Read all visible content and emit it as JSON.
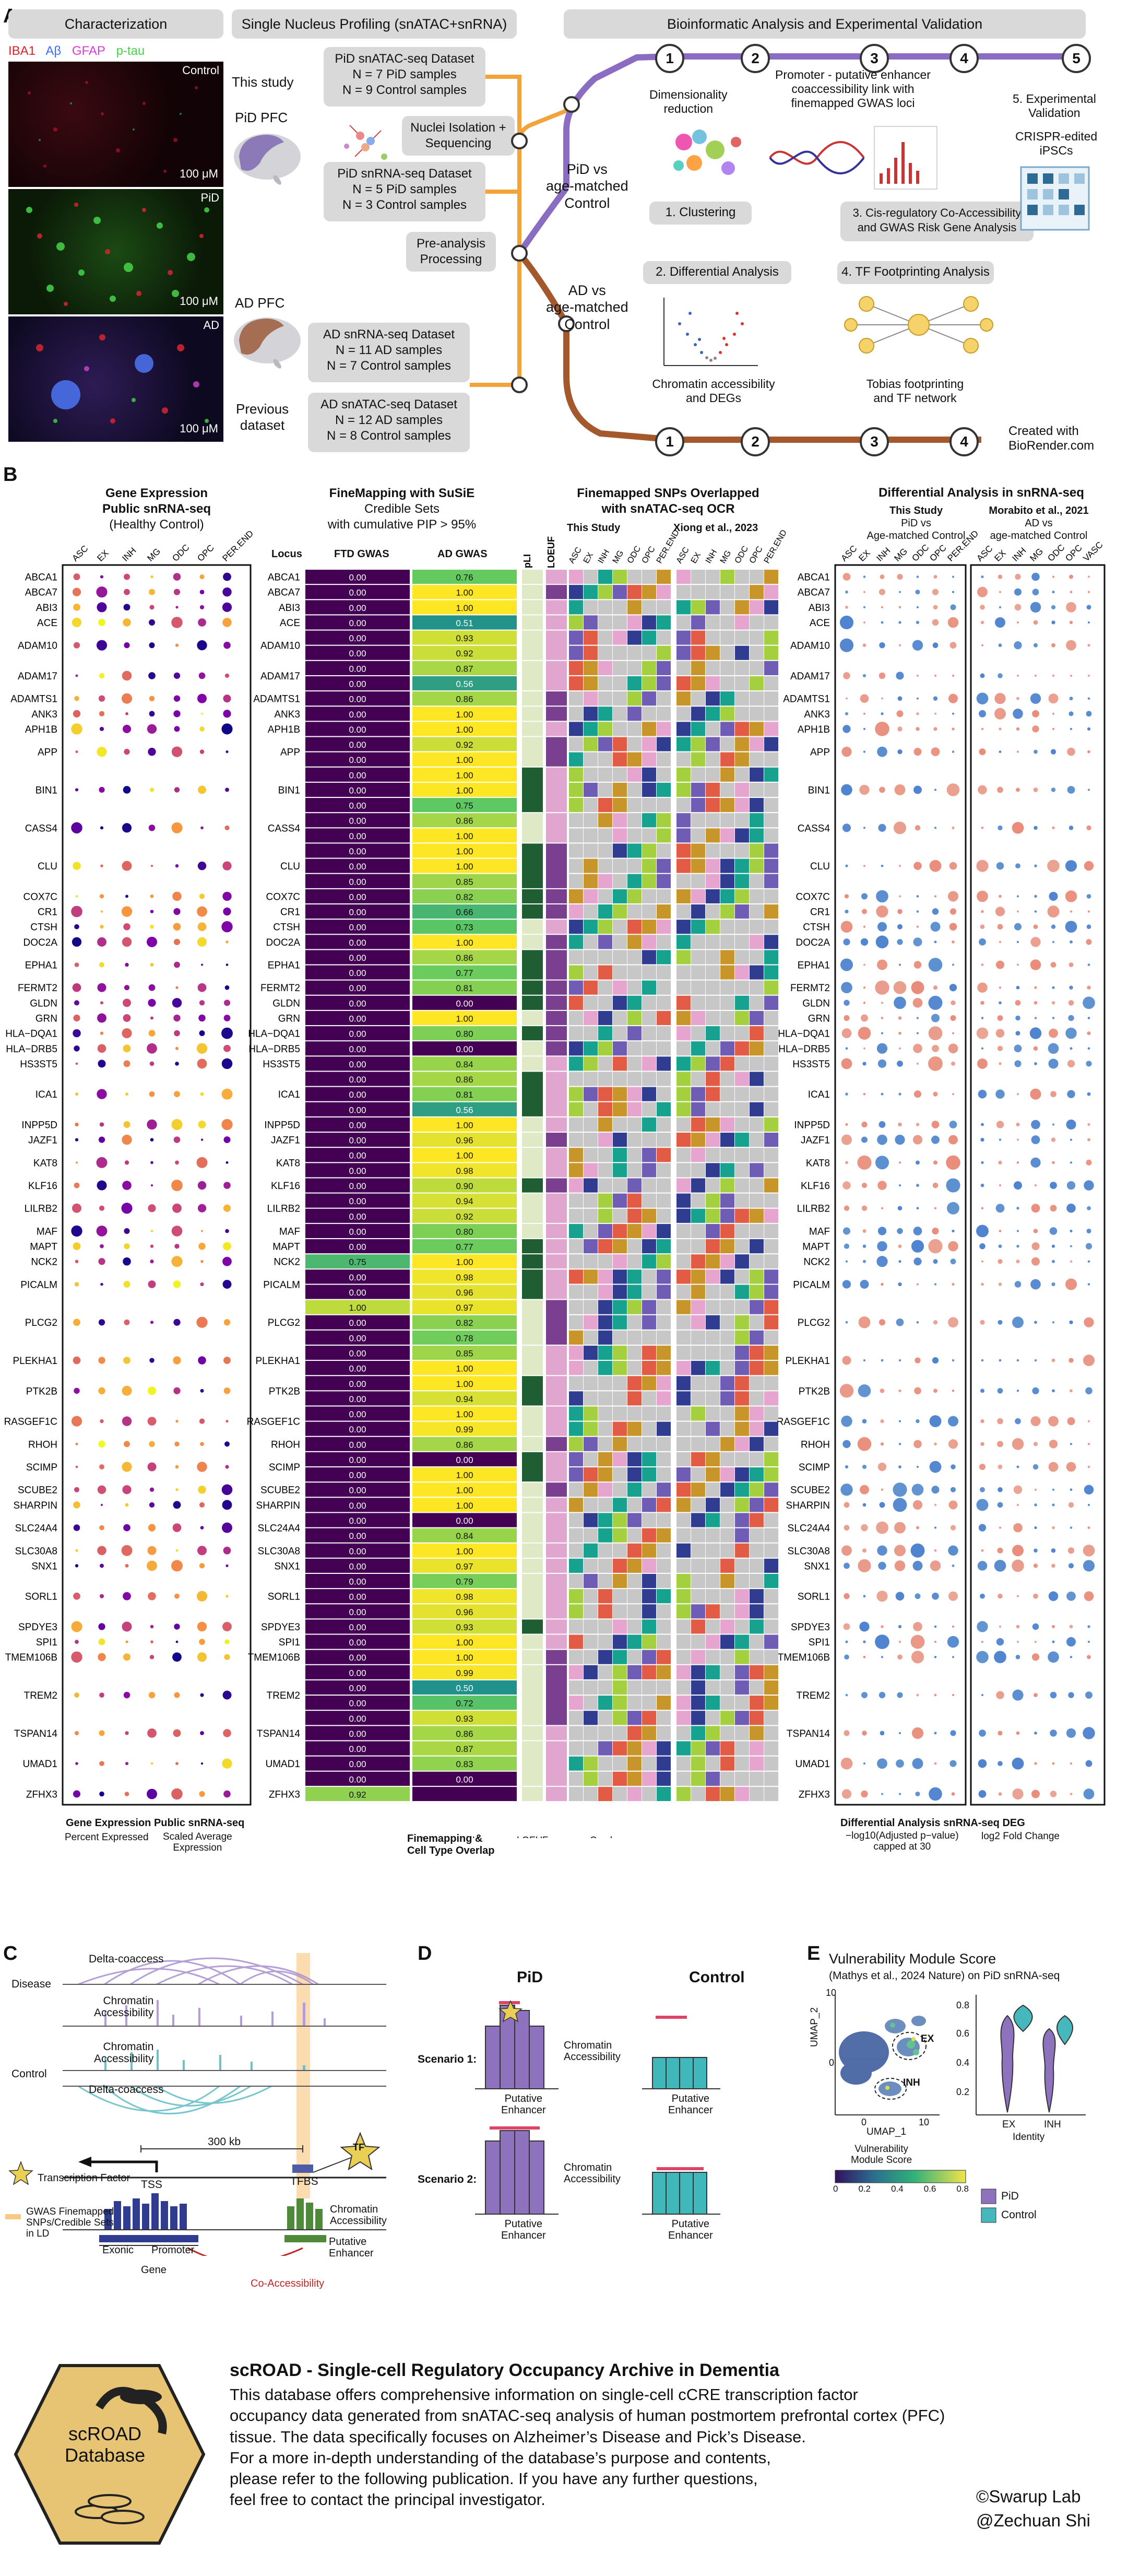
{
  "panelA": {
    "letter": "A",
    "characterization": "Characterization",
    "stains": [
      "IBA1",
      "Aβ",
      "GFAP",
      "p-tau"
    ],
    "stain_colors": [
      "#e01f2a",
      "#3c6bff",
      "#d43fd4",
      "#48d148"
    ],
    "micrographs": [
      {
        "label": "Control",
        "scale": "100 μM"
      },
      {
        "label": "PiD",
        "scale": "100 μM"
      },
      {
        "label": "AD",
        "scale": "100 μM"
      }
    ],
    "profiling_title": "Single Nucleus Profiling (snATAC+snRNA)",
    "this_study": "This study",
    "pid_pfc": "PiD PFC",
    "pid_atac": [
      "PiD snATAC-seq Dataset",
      "N = 7 PiD samples",
      "N = 9 Control samples"
    ],
    "nuclei": [
      "Nuclei Isolation +",
      "Sequencing"
    ],
    "pid_rna": [
      "PiD snRNA-seq Dataset",
      "N = 5 PiD samples",
      "N = 3 Control samples"
    ],
    "preanalysis": [
      "Pre-analysis",
      "Processing"
    ],
    "ad_pfc": "AD PFC",
    "ad_rna": [
      "AD snRNA-seq Dataset",
      "N = 11 AD samples",
      "N = 7 Control samples"
    ],
    "previous": [
      "Previous",
      "dataset"
    ],
    "ad_atac": [
      "AD snATAC-seq Dataset",
      "N = 12 AD samples",
      "N = 8 Control samples"
    ],
    "bioinf_title": "Bioinformatic Analysis and Experimental Validation",
    "pid_vs": [
      "PiD vs",
      "age-matched",
      "Control"
    ],
    "ad_vs": [
      "AD vs",
      "age-matched",
      "Control"
    ],
    "steps_top": [
      "1",
      "2",
      "3",
      "4",
      "5"
    ],
    "steps_bottom": [
      "1",
      "2",
      "3",
      "4"
    ],
    "dimred": [
      "Dimensionality",
      "reduction"
    ],
    "clustering": "1. Clustering",
    "promoter": [
      "Promoter - putative enhancer",
      "coaccessibility link with",
      "finemapped GWAS loci"
    ],
    "cis": [
      "3. Cis-regulatory Co-Accessibility",
      "and GWAS Risk Gene Analysis"
    ],
    "validation": [
      "5. Experimental",
      "Validation"
    ],
    "crispr": [
      "CRISPR-edited",
      "iPSCs"
    ],
    "diff": "2. Differential Analysis",
    "tf": "4. TF Footprinting Analysis",
    "chromatin": [
      "Chromatin accessibility",
      "and DEGs"
    ],
    "tobias": [
      "Tobias footprinting",
      "and TF network"
    ],
    "created": [
      "Created with",
      "BioRender.com"
    ]
  },
  "panelB": {
    "letter": "B",
    "genes": [
      "ABCA1",
      "ABCA7",
      "ABI3",
      "ACE",
      "ADAM10",
      "ADAM17",
      "ADAMTS1",
      "ANK3",
      "APH1B",
      "APP",
      "BIN1",
      "CASS4",
      "CLU",
      "COX7C",
      "CR1",
      "CTSH",
      "DOC2A",
      "EPHA1",
      "FERMT2",
      "GLDN",
      "GRN",
      "HLA−DQA1",
      "HLA−DRB5",
      "HS3ST5",
      "ICA1",
      "INPP5D",
      "JAZF1",
      "KAT8",
      "KLF16",
      "LILRB2",
      "MAF",
      "MAPT",
      "NCK2",
      "PICALM",
      "PLCG2",
      "PLEKHA1",
      "PTK2B",
      "RASGEF1C",
      "RHOH",
      "SCIMP",
      "SCUBE2",
      "SHARPIN",
      "SLC24A4",
      "SLC30A8",
      "SNX1",
      "SORL1",
      "SPDYE3",
      "SPI1",
      "TMEM106B",
      "TREM2",
      "TSPAN14",
      "UMAD1",
      "ZFHX3"
    ],
    "gene_rows": [
      1,
      1,
      1,
      1,
      2,
      2,
      1,
      1,
      1,
      2,
      3,
      2,
      3,
      1,
      1,
      1,
      1,
      2,
      1,
      1,
      1,
      1,
      1,
      1,
      3,
      1,
      1,
      2,
      1,
      2,
      1,
      1,
      1,
      2,
      3,
      2,
      2,
      2,
      1,
      2,
      1,
      1,
      2,
      1,
      1,
      3,
      1,
      1,
      1,
      4,
      1,
      3,
      1
    ],
    "expr_title": [
      "Gene Expression",
      "Public snRNA-seq",
      "(Healthy Control)"
    ],
    "expr_cols": [
      "ASC",
      "EX",
      "INH",
      "MG",
      "ODC",
      "OPC",
      "PER.END"
    ],
    "fm_title": [
      "FineMapping with SuSiE",
      "Credible Sets",
      "with cumulative PIP > 95%"
    ],
    "locus": "Locus",
    "ftd": "FTD GWAS",
    "ad": "AD GWAS",
    "pli": "pLI",
    "loeuf": "LOEUF",
    "snp_title": [
      "Finemapped SNPs Overlapped",
      "with snATAC-seq OCR"
    ],
    "this_study": "This Study",
    "xiong": "Xiong et al., 2023",
    "snp_cols": [
      "ASC",
      "EX",
      "INH",
      "MG",
      "ODC",
      "OPC",
      "PER.END"
    ],
    "de_title": "Differential Analysis in snRNA-seq",
    "de_this": [
      "This Study",
      "PiD vs",
      "Age-matched Control"
    ],
    "de_mora": [
      "Morabito et al., 2021",
      "AD vs",
      "age-matched Control"
    ],
    "de_cols": [
      "ASC",
      "EX",
      "INH",
      "MG",
      "ODC",
      "OPC",
      "PER.END"
    ],
    "de_cols2": [
      "ASC",
      "EX",
      "INH",
      "MG",
      "ODC",
      "OPC",
      "VASC"
    ],
    "ftd_vals": [
      "0.00",
      "0.00",
      "0.00",
      "0.00",
      "0.00",
      "0.00",
      "0.00",
      "0.00",
      "0.00",
      "0.00",
      "0.00",
      "0.00",
      "0.00",
      "0.00",
      "0.00",
      "0.00",
      "0.00",
      "0.00",
      "0.00",
      "0.00",
      "0.00",
      "0.00",
      "0.00",
      "0.00",
      "0.00",
      "0.00",
      "0.00",
      "0.00",
      "0.00",
      "0.00",
      "0.00",
      "0.00",
      "0.00",
      "0.00",
      "0.00",
      "0.00",
      "0.00",
      "0.00",
      "0.00",
      "0.00",
      "0.00",
      "0.00",
      "0.00",
      "0.00",
      "0.00",
      "0.75",
      "0.00",
      "0.00",
      "1.00",
      "0.00",
      "0.00",
      "0.00",
      "0.00",
      "0.00",
      "0.00",
      "0.00",
      "0.00",
      "0.00",
      "0.00",
      "0.00",
      "0.00",
      "0.00",
      "0.00",
      "0.00",
      "0.00",
      "0.00",
      "0.00",
      "0.00",
      "0.00",
      "0.00",
      "0.00",
      "0.00",
      "0.00",
      "0.00",
      "0.00",
      "0.00",
      "0.00",
      "0.00",
      "0.00",
      "0.00",
      "0.92",
      "0.00",
      "0.00",
      "0.00",
      "0.81",
      "0.00",
      "0.00",
      "0.00",
      "0.00",
      "0.00",
      "0.00",
      "0.00",
      "0.00",
      "0.00",
      "0.00",
      "0.00",
      "0.00",
      "0.00",
      "0.00",
      "0.00",
      "0.00",
      "0.00",
      "0.68"
    ],
    "ad_vals": [
      "0.76",
      "1.00",
      "1.00",
      "0.51",
      "0.93",
      "0.92",
      "0.87",
      "0.56",
      "0.86",
      "1.00",
      "1.00",
      "0.92",
      "1.00",
      "1.00",
      "1.00",
      "0.75",
      "0.86",
      "1.00",
      "1.00",
      "1.00",
      "0.85",
      "0.82",
      "0.66",
      "0.73",
      "1.00",
      "0.86",
      "0.77",
      "0.81",
      "0.00",
      "1.00",
      "0.80",
      "0.00",
      "0.84",
      "0.86",
      "0.81",
      "0.56",
      "1.00",
      "0.96",
      "1.00",
      "0.98",
      "0.90",
      "0.94",
      "0.92",
      "0.80",
      "0.77",
      "1.00",
      "0.98",
      "0.96",
      "0.97",
      "0.82",
      "0.78",
      "0.85",
      "1.00",
      "1.00",
      "0.94",
      "1.00",
      "0.99",
      "0.86",
      "0.00",
      "1.00",
      "1.00",
      "1.00",
      "0.00",
      "0.84",
      "1.00",
      "0.97",
      "0.79",
      "0.98",
      "0.96",
      "0.93",
      "1.00",
      "1.00",
      "0.99",
      "0.50",
      "0.72",
      "0.93",
      "0.86",
      "0.87",
      "0.83",
      "0.00"
    ],
    "legend_expr": {
      "title": "Gene Expression Public snRNA-seq",
      "pct": "Percent Expressed",
      "scaled": [
        "Scaled Average",
        "Expression"
      ],
      "sizes": [
        "0",
        "25",
        "50",
        "75",
        "100"
      ],
      "scale": [
        "2",
        "1",
        "0",
        "−1"
      ]
    },
    "legend_fm": {
      "title": "Finemapping &",
      "r2": "r²",
      "r2_ticks": [
        "1",
        "0.5",
        "0"
      ],
      "pli": "pLI",
      "pli_ticks": [
        "1",
        "0.5",
        "0"
      ],
      "loeuf": "LOEUF",
      "loeuf_ticks": [
        "2",
        "1.5",
        "1",
        "0.5"
      ],
      "cto": "Cell Type Overlap",
      "overlap": "Overlap",
      "items": [
        "Not Present",
        "PER.END",
        "OPC",
        "ODC",
        "MG",
        "INH",
        "EX",
        "ASC"
      ],
      "item_colors": [
        "#c7c7c7",
        "#e6a5cf",
        "#2f3c8f",
        "#17a18f",
        "#a4cf3e",
        "#6f5db5",
        "#e25b45",
        "#c8952a"
      ]
    },
    "legend_de": {
      "title": "Differential Analysis snRNA-seq DEG",
      "sig": [
        "−log10(Adjusted p−value)",
        "capped at 30"
      ],
      "sig_ticks": [
        "0",
        "10",
        "20",
        "30 +"
      ],
      "fc": "log2 Fold Change",
      "fc_ticks": [
        "0.2",
        "0.1",
        "0.0",
        "−0.1",
        "−0.2"
      ]
    }
  },
  "panelC": {
    "letter": "C",
    "delta1": "Delta-coaccess",
    "disease": "Disease",
    "chrom1": [
      "Chromatin",
      "Accessibility"
    ],
    "chrom2": [
      "Chromatin",
      "Accessibility"
    ],
    "control": "Control",
    "delta2": "Delta-coaccess",
    "kb": "300 kb",
    "tf": "TF",
    "tfbs": "TFBS",
    "tss": "TSS",
    "tf_legend": "Transcription Factor",
    "gwas_legend": [
      "GWAS Finemapped",
      "SNPs/Credible Sets",
      "in LD"
    ],
    "chrom3": [
      "Chromatin",
      "Accessibility"
    ],
    "exonic": "Exonic",
    "promoter": "Promoter",
    "putative": [
      "Putative",
      "Enhancer"
    ],
    "gene": "Gene",
    "coacc": "Co-Accessibility"
  },
  "panelD": {
    "letter": "D",
    "pid": "PiD",
    "control": "Control",
    "s1": "Scenario 1:",
    "s2": "Scenario 2:",
    "chrom": [
      "Chromatin",
      "Accessibility"
    ],
    "putative": [
      "Putative",
      "Enhancer"
    ]
  },
  "panelE": {
    "letter": "E",
    "title": "Vulnerability Module Score",
    "subtitle": "(Mathys et al., 2024 Nature) on PiD snRNA-seq",
    "umap2": "UMAP_2",
    "umap1": "UMAP_1",
    "ex": "EX",
    "inh": "INH",
    "identity": "Identity",
    "cats": [
      "EX",
      "INH"
    ],
    "y_ticks": [
      "0.8",
      "0.6",
      "0.4",
      "0.2"
    ],
    "x_ticks": [
      "0",
      "10"
    ],
    "y_ticks_umap": [
      "10",
      "0"
    ],
    "module": [
      "Vulnerability",
      "Module Score"
    ],
    "module_ticks": [
      "0",
      "0.2",
      "0.4",
      "0.6",
      "0.8"
    ],
    "legend": [
      "PiD",
      "Control"
    ]
  },
  "footer": {
    "db": [
      "scROAD",
      "Database"
    ],
    "title": "scROAD - Single-cell Regulatory Occupancy Archive in Dementia",
    "lines": [
      "This database offers comprehensive information on single-cell cCRE transcription factor",
      "occupancy data generated from snATAC-seq analysis of human postmortem prefrontal cortex (PFC)",
      "tissue. The data specifically focuses on Alzheimer’s Disease and Pick’s Disease.",
      "For a more in-depth understanding of the database’s purpose and contents,",
      "please refer to the following publication. If you have any further questions,",
      "feel free to contact the principal investigator."
    ],
    "lab": "©Swarup Lab",
    "handle": "@Zechuan Shi"
  }
}
